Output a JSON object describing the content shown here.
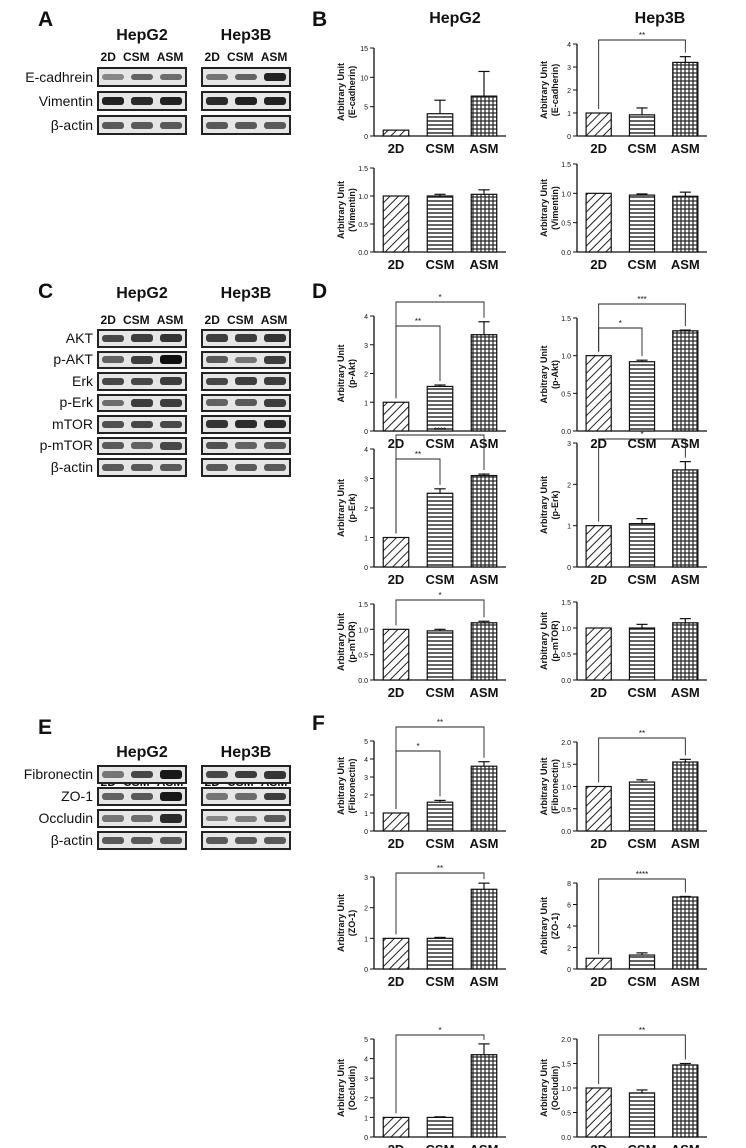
{
  "panels": {
    "A": {
      "label": "A",
      "cell_lines": [
        "HepG2",
        "Hep3B"
      ],
      "lanes": [
        "2D",
        "CSM",
        "ASM"
      ],
      "blots": [
        {
          "label": "E-cadhrein",
          "intensity": [
            [
              0.35,
              0.55,
              0.5
            ],
            [
              0.45,
              0.55,
              0.9
            ]
          ]
        },
        {
          "label": "Vimentin",
          "intensity": [
            [
              0.9,
              0.85,
              0.9
            ],
            [
              0.85,
              0.9,
              0.9
            ]
          ]
        },
        {
          "label": "β-actin",
          "intensity": [
            [
              0.6,
              0.6,
              0.6
            ],
            [
              0.6,
              0.6,
              0.6
            ]
          ]
        }
      ]
    },
    "B": {
      "label": "B",
      "headers": [
        "HepG2",
        "Hep3B"
      ]
    },
    "C": {
      "label": "C",
      "cell_lines": [
        "HepG2",
        "Hep3B"
      ],
      "lanes": [
        "2D",
        "CSM",
        "ASM"
      ],
      "blots": [
        {
          "label": "AKT",
          "intensity": [
            [
              0.7,
              0.75,
              0.8
            ],
            [
              0.75,
              0.75,
              0.8
            ]
          ]
        },
        {
          "label": "p-AKT",
          "intensity": [
            [
              0.55,
              0.75,
              1.0
            ],
            [
              0.6,
              0.45,
              0.75
            ]
          ]
        },
        {
          "label": "Erk",
          "intensity": [
            [
              0.7,
              0.7,
              0.75
            ],
            [
              0.7,
              0.75,
              0.75
            ]
          ]
        },
        {
          "label": "p-Erk",
          "intensity": [
            [
              0.5,
              0.75,
              0.75
            ],
            [
              0.55,
              0.6,
              0.75
            ]
          ]
        },
        {
          "label": "mTOR",
          "intensity": [
            [
              0.65,
              0.7,
              0.7
            ],
            [
              0.8,
              0.85,
              0.85
            ]
          ]
        },
        {
          "label": "p-mTOR",
          "intensity": [
            [
              0.6,
              0.55,
              0.7
            ],
            [
              0.65,
              0.55,
              0.6
            ]
          ]
        },
        {
          "label": "β-actin",
          "intensity": [
            [
              0.6,
              0.6,
              0.6
            ],
            [
              0.6,
              0.6,
              0.6
            ]
          ]
        }
      ]
    },
    "D": {
      "label": "D"
    },
    "E": {
      "label": "E",
      "cell_lines": [
        "HepG2",
        "Hep3B"
      ],
      "lanes": [
        "2D",
        "CSM",
        "ASM"
      ],
      "blots": [
        {
          "label": "Fibronectin",
          "intensity": [
            [
              0.45,
              0.7,
              0.95
            ],
            [
              0.7,
              0.75,
              0.8
            ]
          ]
        },
        {
          "label": "ZO-1",
          "intensity": [
            [
              0.55,
              0.6,
              0.95
            ],
            [
              0.45,
              0.5,
              0.75
            ]
          ]
        },
        {
          "label": "Occludin",
          "intensity": [
            [
              0.45,
              0.5,
              0.85
            ],
            [
              0.35,
              0.4,
              0.6
            ]
          ]
        },
        {
          "label": "β-actin",
          "intensity": [
            [
              0.6,
              0.6,
              0.6
            ],
            [
              0.6,
              0.6,
              0.6
            ]
          ]
        }
      ]
    },
    "F": {
      "label": "F"
    }
  },
  "chart_data": [
    {
      "type": "bar",
      "panel": "B",
      "cell_line": "HepG2",
      "categories": [
        "2D",
        "CSM",
        "ASM"
      ],
      "values": [
        1,
        3.8,
        6.8
      ],
      "errors": [
        0,
        2.3,
        4.2
      ],
      "ylabel": [
        "Arbitrary Unit",
        "(E-cadherin)"
      ],
      "ylim": [
        0,
        15
      ],
      "yticks": [
        0,
        5,
        10,
        15
      ],
      "significance": []
    },
    {
      "type": "bar",
      "panel": "B",
      "cell_line": "Hep3B",
      "categories": [
        "2D",
        "CSM",
        "ASM"
      ],
      "values": [
        1,
        0.92,
        3.2
      ],
      "errors": [
        0,
        0.3,
        0.25
      ],
      "ylabel": [
        "Arbitrary Unit",
        "(E-cadherin)"
      ],
      "ylim": [
        0,
        4
      ],
      "yticks": [
        0,
        1,
        2,
        3,
        4
      ],
      "significance": [
        {
          "from": 0,
          "to": 2,
          "label": "**"
        }
      ]
    },
    {
      "type": "bar",
      "panel": "B",
      "cell_line": "HepG2",
      "categories": [
        "2D",
        "CSM",
        "ASM"
      ],
      "values": [
        1,
        1,
        1.03
      ],
      "errors": [
        0,
        0.03,
        0.08
      ],
      "ylabel": [
        "Arbitrary Unit",
        "(Vimentin)"
      ],
      "ylim": [
        0,
        1.5
      ],
      "yticks": [
        0,
        0.5,
        1.0,
        1.5
      ],
      "significance": []
    },
    {
      "type": "bar",
      "panel": "B",
      "cell_line": "Hep3B",
      "categories": [
        "2D",
        "CSM",
        "ASM"
      ],
      "values": [
        1,
        0.97,
        0.95
      ],
      "errors": [
        0,
        0.02,
        0.07
      ],
      "ylabel": [
        "Arbitrary Unit",
        "(Vimentin)"
      ],
      "ylim": [
        0,
        1.5
      ],
      "yticks": [
        0,
        0.5,
        1.0,
        1.5
      ],
      "significance": []
    },
    {
      "type": "bar",
      "panel": "D",
      "cell_line": "HepG2",
      "categories": [
        "2D",
        "CSM",
        "ASM"
      ],
      "values": [
        1,
        1.55,
        3.35
      ],
      "errors": [
        0,
        0.05,
        0.45
      ],
      "ylabel": [
        "Arbitrary Unit",
        "(p-Akt)"
      ],
      "ylim": [
        0,
        4
      ],
      "yticks": [
        0,
        1,
        2,
        3,
        4
      ],
      "significance": [
        {
          "from": 0,
          "to": 2,
          "label": "*"
        },
        {
          "from": 0,
          "to": 1,
          "label": "**"
        }
      ]
    },
    {
      "type": "bar",
      "panel": "D",
      "cell_line": "Hep3B",
      "categories": [
        "2D",
        "CSM",
        "ASM"
      ],
      "values": [
        1,
        0.92,
        1.33
      ],
      "errors": [
        0,
        0.02,
        0.01
      ],
      "ylabel": [
        "Arbitrary Unit",
        "(p-Akt)"
      ],
      "ylim": [
        0,
        1.5
      ],
      "yticks": [
        0,
        0.5,
        1.0,
        1.5
      ],
      "significance": [
        {
          "from": 0,
          "to": 2,
          "label": "***"
        },
        {
          "from": 0,
          "to": 1,
          "label": "*"
        }
      ]
    },
    {
      "type": "bar",
      "panel": "D",
      "cell_line": "HepG2",
      "categories": [
        "2D",
        "CSM",
        "ASM"
      ],
      "values": [
        1,
        2.5,
        3.1
      ],
      "errors": [
        0,
        0.15,
        0.05
      ],
      "ylabel": [
        "Arbitrary Unit",
        "(p-Erk)"
      ],
      "ylim": [
        0,
        4
      ],
      "yticks": [
        0,
        1,
        2,
        3,
        4
      ],
      "significance": [
        {
          "from": 0,
          "to": 2,
          "label": "****"
        },
        {
          "from": 0,
          "to": 1,
          "label": "**"
        }
      ]
    },
    {
      "type": "bar",
      "panel": "D",
      "cell_line": "Hep3B",
      "categories": [
        "2D",
        "CSM",
        "ASM"
      ],
      "values": [
        1,
        1.05,
        2.35
      ],
      "errors": [
        0,
        0.12,
        0.2
      ],
      "ylabel": [
        "Arbitrary Unit",
        "(p-Erk)"
      ],
      "ylim": [
        0,
        3
      ],
      "yticks": [
        0,
        1,
        2,
        3
      ],
      "significance": [
        {
          "from": 0,
          "to": 2,
          "label": "*"
        }
      ]
    },
    {
      "type": "bar",
      "panel": "D",
      "cell_line": "HepG2",
      "categories": [
        "2D",
        "CSM",
        "ASM"
      ],
      "values": [
        1,
        0.97,
        1.13
      ],
      "errors": [
        0,
        0.03,
        0.03
      ],
      "ylabel": [
        "Arbitrary Unit",
        "(p-mTOR)"
      ],
      "ylim": [
        0,
        1.5
      ],
      "yticks": [
        0,
        0.5,
        1.0,
        1.5
      ],
      "significance": [
        {
          "from": 0,
          "to": 2,
          "label": "*"
        }
      ]
    },
    {
      "type": "bar",
      "panel": "D",
      "cell_line": "Hep3B",
      "categories": [
        "2D",
        "CSM",
        "ASM"
      ],
      "values": [
        1,
        1,
        1.1
      ],
      "errors": [
        0,
        0.07,
        0.08
      ],
      "ylabel": [
        "Arbitrary Unit",
        "(p-mTOR)"
      ],
      "ylim": [
        0,
        1.5
      ],
      "yticks": [
        0,
        0.5,
        1.0,
        1.5
      ],
      "significance": []
    },
    {
      "type": "bar",
      "panel": "F",
      "cell_line": "HepG2",
      "categories": [
        "2D",
        "CSM",
        "ASM"
      ],
      "values": [
        1,
        1.6,
        3.6
      ],
      "errors": [
        0,
        0.1,
        0.25
      ],
      "ylabel": [
        "Arbitrary Unit",
        "(Fibronectin)"
      ],
      "ylim": [
        0,
        5
      ],
      "yticks": [
        0,
        1,
        2,
        3,
        4,
        5
      ],
      "significance": [
        {
          "from": 0,
          "to": 2,
          "label": "**"
        },
        {
          "from": 0,
          "to": 1,
          "label": "*"
        }
      ]
    },
    {
      "type": "bar",
      "panel": "F",
      "cell_line": "Hep3B",
      "categories": [
        "2D",
        "CSM",
        "ASM"
      ],
      "values": [
        1,
        1.1,
        1.55
      ],
      "errors": [
        0,
        0.05,
        0.06
      ],
      "ylabel": [
        "Arbitrary Unit",
        "(Fibronectin)"
      ],
      "ylim": [
        0,
        2.0
      ],
      "yticks": [
        0,
        0.5,
        1.0,
        1.5,
        2.0
      ],
      "significance": [
        {
          "from": 0,
          "to": 2,
          "label": "**"
        }
      ]
    },
    {
      "type": "bar",
      "panel": "F",
      "cell_line": "HepG2",
      "categories": [
        "2D",
        "CSM",
        "ASM"
      ],
      "values": [
        1,
        1,
        2.6
      ],
      "errors": [
        0,
        0.03,
        0.2
      ],
      "ylabel": [
        "Arbitrary Unit",
        "(ZO-1)"
      ],
      "ylim": [
        0,
        3
      ],
      "yticks": [
        0,
        1,
        2,
        3
      ],
      "significance": [
        {
          "from": 0,
          "to": 2,
          "label": "**"
        }
      ]
    },
    {
      "type": "bar",
      "panel": "F",
      "cell_line": "Hep3B",
      "categories": [
        "2D",
        "CSM",
        "ASM"
      ],
      "values": [
        1,
        1.3,
        6.7
      ],
      "errors": [
        0,
        0.2,
        0.05
      ],
      "ylabel": [
        "Arbitrary Unit",
        "(ZO-1)"
      ],
      "ylim": [
        0,
        8
      ],
      "yticks": [
        0,
        2,
        4,
        6,
        8
      ],
      "significance": [
        {
          "from": 0,
          "to": 2,
          "label": "****"
        }
      ]
    },
    {
      "type": "bar",
      "panel": "F",
      "cell_line": "HepG2",
      "categories": [
        "2D",
        "CSM",
        "ASM"
      ],
      "values": [
        1,
        1,
        4.2
      ],
      "errors": [
        0,
        0.03,
        0.55
      ],
      "ylabel": [
        "Arbitrary Unit",
        "(Occludin)"
      ],
      "ylim": [
        0,
        5
      ],
      "yticks": [
        0,
        1,
        2,
        3,
        4,
        5
      ],
      "significance": [
        {
          "from": 0,
          "to": 2,
          "label": "*"
        }
      ]
    },
    {
      "type": "bar",
      "panel": "F",
      "cell_line": "Hep3B",
      "categories": [
        "2D",
        "CSM",
        "ASM"
      ],
      "values": [
        1,
        0.9,
        1.47
      ],
      "errors": [
        0,
        0.06,
        0.03
      ],
      "ylabel": [
        "Arbitrary Unit",
        "(Occludin)"
      ],
      "ylim": [
        0,
        2.0
      ],
      "yticks": [
        0,
        0.5,
        1.0,
        1.5,
        2.0
      ],
      "significance": [
        {
          "from": 0,
          "to": 2,
          "label": "**"
        }
      ]
    }
  ]
}
